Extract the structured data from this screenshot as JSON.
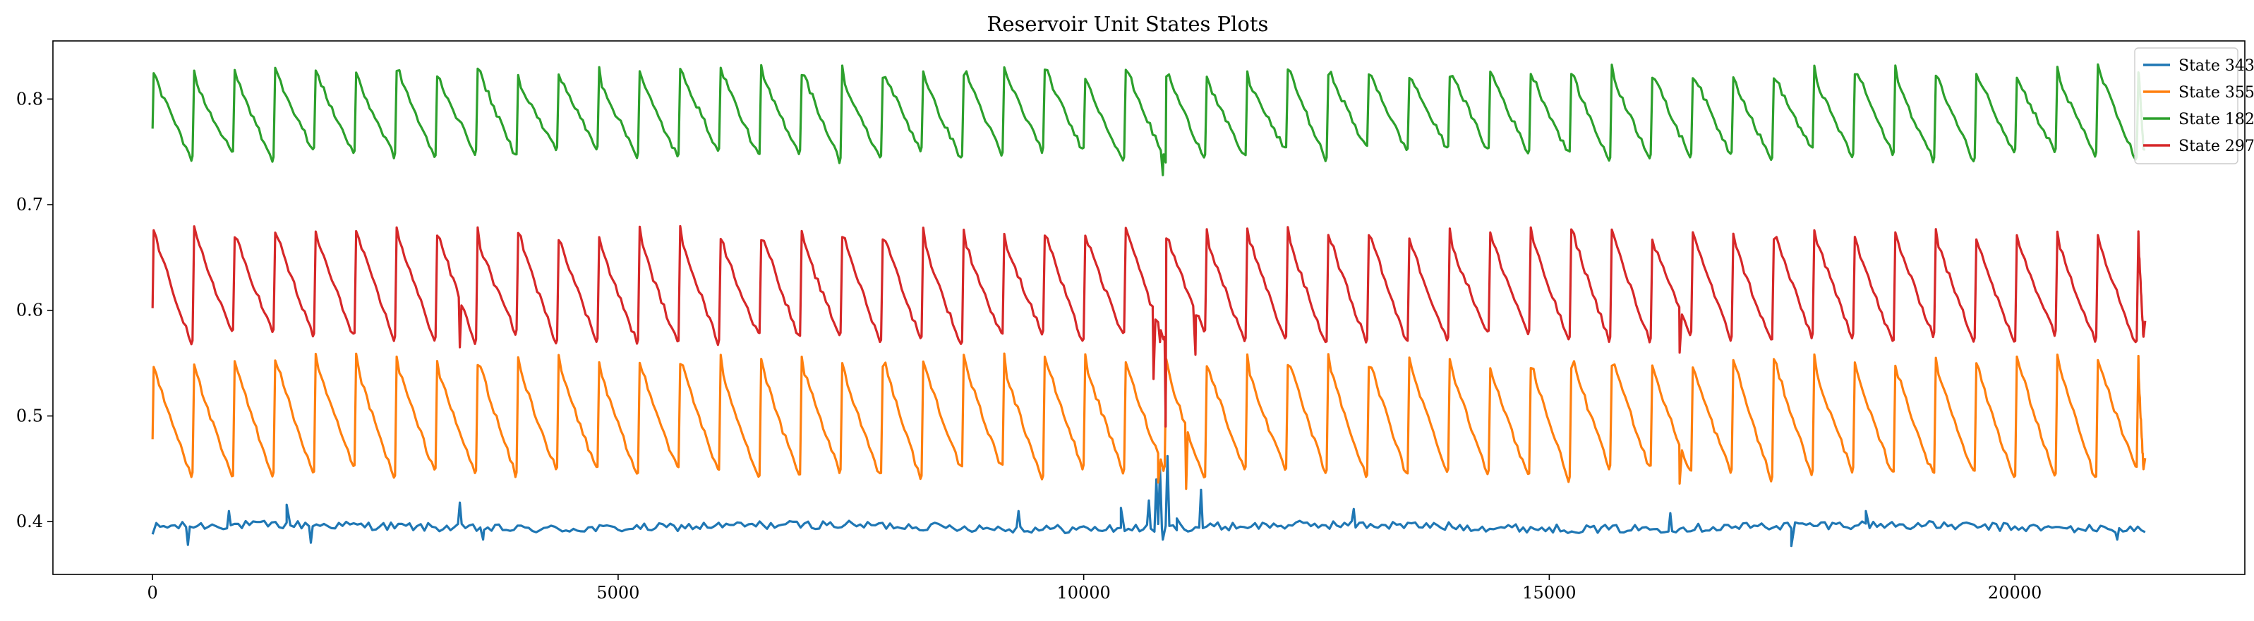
{
  "chart_data": {
    "type": "line",
    "title": "Reservoir Unit States Plots",
    "xlabel": "",
    "ylabel": "",
    "xlim": [
      -1070,
      22470
    ],
    "ylim": [
      0.35,
      0.855
    ],
    "x_ticks": [
      0,
      5000,
      10000,
      15000,
      20000
    ],
    "x_tick_labels": [
      "0",
      "5000",
      "10000",
      "15000",
      "20000"
    ],
    "y_ticks": [
      0.4,
      0.5,
      0.6,
      0.7,
      0.8
    ],
    "y_tick_labels": [
      "0.4",
      "0.5",
      "0.6",
      "0.7",
      "0.8"
    ],
    "grid": false,
    "legend_position": "top-right",
    "sampling": "sawtooth cycles of about 435 samples from x = 0 to x = 21400; each cycle jumps to its peak then decays to its trough",
    "cycle_length": 435,
    "x_start": 0,
    "x_end": 21400,
    "series": [
      {
        "name": "State 343",
        "color": "#1f77b4",
        "shape": "noisy-flat",
        "start_value": 0.388,
        "end_value": 0.39,
        "baseline": 0.395,
        "noise": 0.004,
        "spikes": [
          {
            "x": 380,
            "y": 0.378
          },
          {
            "x": 820,
            "y": 0.41
          },
          {
            "x": 1440,
            "y": 0.416
          },
          {
            "x": 1700,
            "y": 0.38
          },
          {
            "x": 3300,
            "y": 0.418
          },
          {
            "x": 3550,
            "y": 0.383
          },
          {
            "x": 9300,
            "y": 0.41
          },
          {
            "x": 10400,
            "y": 0.413
          },
          {
            "x": 10700,
            "y": 0.42
          },
          {
            "x": 10780,
            "y": 0.44
          },
          {
            "x": 10820,
            "y": 0.45
          },
          {
            "x": 10850,
            "y": 0.383
          },
          {
            "x": 10900,
            "y": 0.462
          },
          {
            "x": 11000,
            "y": 0.403
          },
          {
            "x": 11260,
            "y": 0.43
          },
          {
            "x": 12900,
            "y": 0.412
          },
          {
            "x": 16300,
            "y": 0.408
          },
          {
            "x": 17600,
            "y": 0.377
          },
          {
            "x": 18400,
            "y": 0.41
          },
          {
            "x": 21100,
            "y": 0.383
          }
        ]
      },
      {
        "name": "State 355",
        "color": "#ff7f0e",
        "shape": "sawtooth",
        "start_value": 0.478,
        "end_value": 0.46,
        "peak": 0.552,
        "trough": 0.446,
        "anomalies": [
          {
            "x": 10800,
            "y": 0.437
          },
          {
            "x": 10870,
            "y": 0.452
          },
          {
            "x": 11100,
            "y": 0.431
          },
          {
            "x": 16400,
            "y": 0.436
          }
        ]
      },
      {
        "name": "State 182",
        "color": "#2ca02c",
        "shape": "sawtooth",
        "start_value": 0.772,
        "end_value": 0.752,
        "peak": 0.826,
        "trough": 0.748,
        "anomalies": [
          {
            "x": 10850,
            "y": 0.728
          },
          {
            "x": 10880,
            "y": 0.74
          }
        ]
      },
      {
        "name": "State 297",
        "color": "#d62728",
        "shape": "sawtooth",
        "start_value": 0.602,
        "end_value": 0.59,
        "peak": 0.673,
        "trough": 0.574,
        "anomalies": [
          {
            "x": 3300,
            "y": 0.565
          },
          {
            "x": 10750,
            "y": 0.535
          },
          {
            "x": 10820,
            "y": 0.57
          },
          {
            "x": 10880,
            "y": 0.49
          },
          {
            "x": 11200,
            "y": 0.558
          },
          {
            "x": 16400,
            "y": 0.56
          }
        ]
      }
    ]
  }
}
